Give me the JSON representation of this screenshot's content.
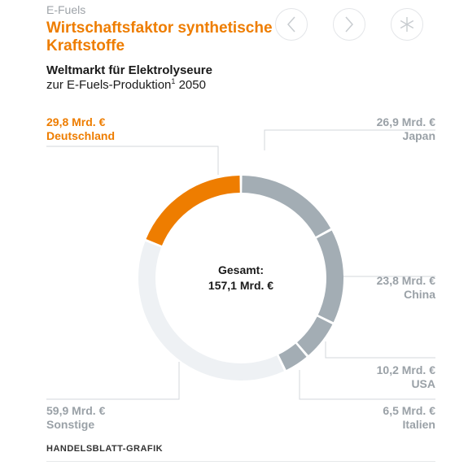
{
  "header": {
    "kicker": "E-Fuels",
    "title": "Wirtschaftsfaktor synthetische Kraftstoffe",
    "subtitle": "Weltmarkt für Elektrolyseure",
    "subtitle2": "zur E-Fuels-Produktion",
    "subtitle2_sup": "1",
    "subtitle2_year": " 2050"
  },
  "nav": {
    "prev_icon": "chevron-left-icon",
    "next_icon": "chevron-right-icon",
    "share_icon": "asterisk-icon"
  },
  "center": {
    "line1": "Gesamt:",
    "line2": "157,1 Mrd. €"
  },
  "credit": "HANDELSBLATT-GRAFIK",
  "colors": {
    "accent": "#ee7d00",
    "segment": "#a3adb4",
    "other": "#eef1f4",
    "leader": "#d3d7db"
  },
  "chart_data": {
    "type": "pie",
    "donut": true,
    "unit": "Mrd. €",
    "total": 157.1,
    "slices": [
      {
        "name": "Japan",
        "value": 26.9,
        "label": "26,9 Mrd. €"
      },
      {
        "name": "China",
        "value": 23.8,
        "label": "23,8 Mrd. €"
      },
      {
        "name": "USA",
        "value": 10.2,
        "label": "10,2 Mrd. €"
      },
      {
        "name": "Italien",
        "value": 6.5,
        "label": "6,5 Mrd. €"
      },
      {
        "name": "Sonstige",
        "value": 59.9,
        "label": "59,9 Mrd. €"
      },
      {
        "name": "Deutschland",
        "value": 29.8,
        "label": "29,8 Mrd. €"
      }
    ]
  }
}
